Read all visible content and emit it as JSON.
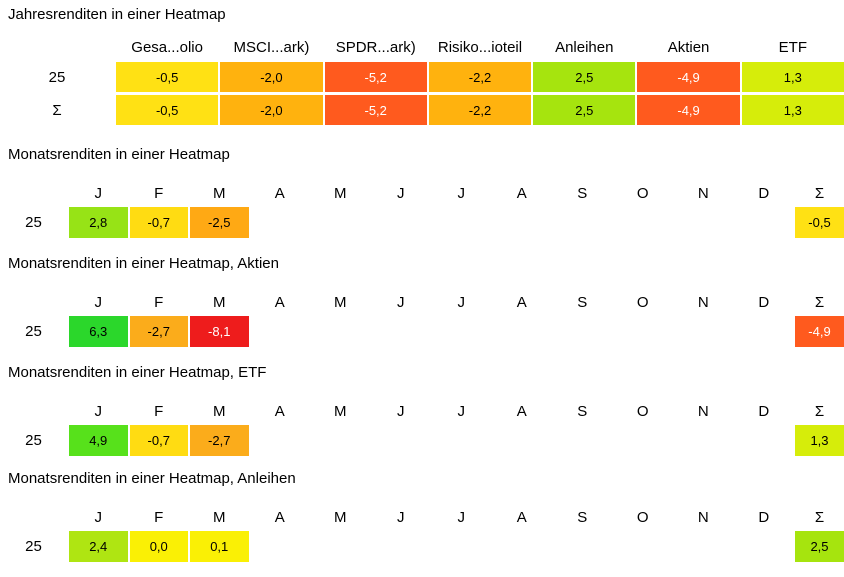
{
  "report": {
    "background": "#FFFFFF",
    "text_color": "#000000"
  },
  "sections": [
    {
      "title": "Jahresrenditen in einer Heatmap",
      "layout": "yearly",
      "columns": [
        "Gesa...olio",
        "MSCI...ark)",
        "SPDR...ark)",
        "Risiko...ioteil",
        "Anleihen",
        "Aktien",
        "ETF"
      ],
      "rows": [
        {
          "label": "25",
          "cells": [
            {
              "text": "-0,5",
              "bg": "#FFE114",
              "fg": "#000000"
            },
            {
              "text": "-2,0",
              "bg": "#FFB20E",
              "fg": "#000000"
            },
            {
              "text": "-5,2",
              "bg": "#FF5A1E",
              "fg": "#FFFFFF"
            },
            {
              "text": "-2,2",
              "bg": "#FFB20E",
              "fg": "#000000"
            },
            {
              "text": "2,5",
              "bg": "#A6E40E",
              "fg": "#000000"
            },
            {
              "text": "-4,9",
              "bg": "#FF5A1E",
              "fg": "#FFFFFF"
            },
            {
              "text": "1,3",
              "bg": "#D6ED0A",
              "fg": "#000000"
            }
          ]
        },
        {
          "label": "Σ",
          "cells": [
            {
              "text": "-0,5",
              "bg": "#FFE114",
              "fg": "#000000"
            },
            {
              "text": "-2,0",
              "bg": "#FFB20E",
              "fg": "#000000"
            },
            {
              "text": "-5,2",
              "bg": "#FF5A1E",
              "fg": "#FFFFFF"
            },
            {
              "text": "-2,2",
              "bg": "#FFB20E",
              "fg": "#000000"
            },
            {
              "text": "2,5",
              "bg": "#A6E40E",
              "fg": "#000000"
            },
            {
              "text": "-4,9",
              "bg": "#FF5A1E",
              "fg": "#FFFFFF"
            },
            {
              "text": "1,3",
              "bg": "#D6ED0A",
              "fg": "#000000"
            }
          ]
        }
      ]
    },
    {
      "title": "Monatsrenditen in einer Heatmap",
      "layout": "monthly",
      "columns": [
        "J",
        "F",
        "M",
        "A",
        "M",
        "J",
        "J",
        "A",
        "S",
        "O",
        "N",
        "D",
        "Σ"
      ],
      "rows": [
        {
          "label": "25",
          "cells": [
            {
              "text": "2,8",
              "bg": "#97E316",
              "fg": "#000000"
            },
            {
              "text": "-0,7",
              "bg": "#FFDC12",
              "fg": "#000000"
            },
            {
              "text": "-2,5",
              "bg": "#FFA914",
              "fg": "#000000"
            },
            null,
            null,
            null,
            null,
            null,
            null,
            null,
            null,
            null,
            {
              "text": "-0,5",
              "bg": "#FFE114",
              "fg": "#000000"
            }
          ]
        }
      ]
    },
    {
      "title": "Monatsrenditen in einer Heatmap, Aktien",
      "layout": "monthly",
      "columns": [
        "J",
        "F",
        "M",
        "A",
        "M",
        "J",
        "J",
        "A",
        "S",
        "O",
        "N",
        "D",
        "Σ"
      ],
      "rows": [
        {
          "label": "25",
          "cells": [
            {
              "text": "6,3",
              "bg": "#2BD72B",
              "fg": "#000000"
            },
            {
              "text": "-2,7",
              "bg": "#FBAC1B",
              "fg": "#000000"
            },
            {
              "text": "-8,1",
              "bg": "#EE1C1C",
              "fg": "#FFFFFF"
            },
            null,
            null,
            null,
            null,
            null,
            null,
            null,
            null,
            null,
            {
              "text": "-4,9",
              "bg": "#FF5A1E",
              "fg": "#FFFFFF"
            }
          ]
        }
      ]
    },
    {
      "title": "Monatsrenditen in einer Heatmap, ETF",
      "layout": "monthly",
      "columns": [
        "J",
        "F",
        "M",
        "A",
        "M",
        "J",
        "J",
        "A",
        "S",
        "O",
        "N",
        "D",
        "Σ"
      ],
      "rows": [
        {
          "label": "25",
          "cells": [
            {
              "text": "4,9",
              "bg": "#57E11B",
              "fg": "#000000"
            },
            {
              "text": "-0,7",
              "bg": "#FFDC12",
              "fg": "#000000"
            },
            {
              "text": "-2,7",
              "bg": "#FBAC1B",
              "fg": "#000000"
            },
            null,
            null,
            null,
            null,
            null,
            null,
            null,
            null,
            null,
            {
              "text": "1,3",
              "bg": "#D6ED0A",
              "fg": "#000000"
            }
          ]
        }
      ]
    },
    {
      "title": "Monatsrenditen in einer Heatmap, Anleihen",
      "layout": "monthly",
      "columns": [
        "J",
        "F",
        "M",
        "A",
        "M",
        "J",
        "J",
        "A",
        "S",
        "O",
        "N",
        "D",
        "Σ"
      ],
      "rows": [
        {
          "label": "25",
          "cells": [
            {
              "text": "2,4",
              "bg": "#AFE512",
              "fg": "#000000"
            },
            {
              "text": "0,0",
              "bg": "#FAF005",
              "fg": "#000000"
            },
            {
              "text": "0,1",
              "bg": "#FAF005",
              "fg": "#000000"
            },
            null,
            null,
            null,
            null,
            null,
            null,
            null,
            null,
            null,
            {
              "text": "2,5",
              "bg": "#A6E40E",
              "fg": "#000000"
            }
          ]
        }
      ]
    }
  ],
  "chart_data": [
    {
      "type": "heatmap",
      "title": "Jahresrenditen in einer Heatmap",
      "columns": [
        "Gesa...olio",
        "MSCI...ark)",
        "SPDR...ark)",
        "Risiko...ioteil",
        "Anleihen",
        "Aktien",
        "ETF"
      ],
      "rows": [
        "25",
        "Σ"
      ],
      "values": [
        [
          -0.5,
          -2.0,
          -5.2,
          -2.2,
          2.5,
          -4.9,
          1.3
        ],
        [
          -0.5,
          -2.0,
          -5.2,
          -2.2,
          2.5,
          -4.9,
          1.3
        ]
      ],
      "color_scale": {
        "negative": "#EE1C1C",
        "zero": "#FFE114",
        "positive": "#2BD72B"
      },
      "value_unit": "percent"
    },
    {
      "type": "heatmap",
      "title": "Monatsrenditen in einer Heatmap",
      "columns": [
        "J",
        "F",
        "M",
        "A",
        "M",
        "J",
        "J",
        "A",
        "S",
        "O",
        "N",
        "D",
        "Σ"
      ],
      "rows": [
        "25"
      ],
      "values": [
        [
          2.8,
          -0.7,
          -2.5,
          null,
          null,
          null,
          null,
          null,
          null,
          null,
          null,
          null,
          -0.5
        ]
      ],
      "value_unit": "percent"
    },
    {
      "type": "heatmap",
      "title": "Monatsrenditen in einer Heatmap, Aktien",
      "columns": [
        "J",
        "F",
        "M",
        "A",
        "M",
        "J",
        "J",
        "A",
        "S",
        "O",
        "N",
        "D",
        "Σ"
      ],
      "rows": [
        "25"
      ],
      "values": [
        [
          6.3,
          -2.7,
          -8.1,
          null,
          null,
          null,
          null,
          null,
          null,
          null,
          null,
          null,
          -4.9
        ]
      ],
      "value_unit": "percent"
    },
    {
      "type": "heatmap",
      "title": "Monatsrenditen in einer Heatmap, ETF",
      "columns": [
        "J",
        "F",
        "M",
        "A",
        "M",
        "J",
        "J",
        "A",
        "S",
        "O",
        "N",
        "D",
        "Σ"
      ],
      "rows": [
        "25"
      ],
      "values": [
        [
          4.9,
          -0.7,
          -2.7,
          null,
          null,
          null,
          null,
          null,
          null,
          null,
          null,
          null,
          1.3
        ]
      ],
      "value_unit": "percent"
    },
    {
      "type": "heatmap",
      "title": "Monatsrenditen in einer Heatmap, Anleihen",
      "columns": [
        "J",
        "F",
        "M",
        "A",
        "M",
        "J",
        "J",
        "A",
        "S",
        "O",
        "N",
        "D",
        "Σ"
      ],
      "rows": [
        "25"
      ],
      "values": [
        [
          2.4,
          0.0,
          0.1,
          null,
          null,
          null,
          null,
          null,
          null,
          null,
          null,
          null,
          2.5
        ]
      ],
      "value_unit": "percent"
    }
  ]
}
